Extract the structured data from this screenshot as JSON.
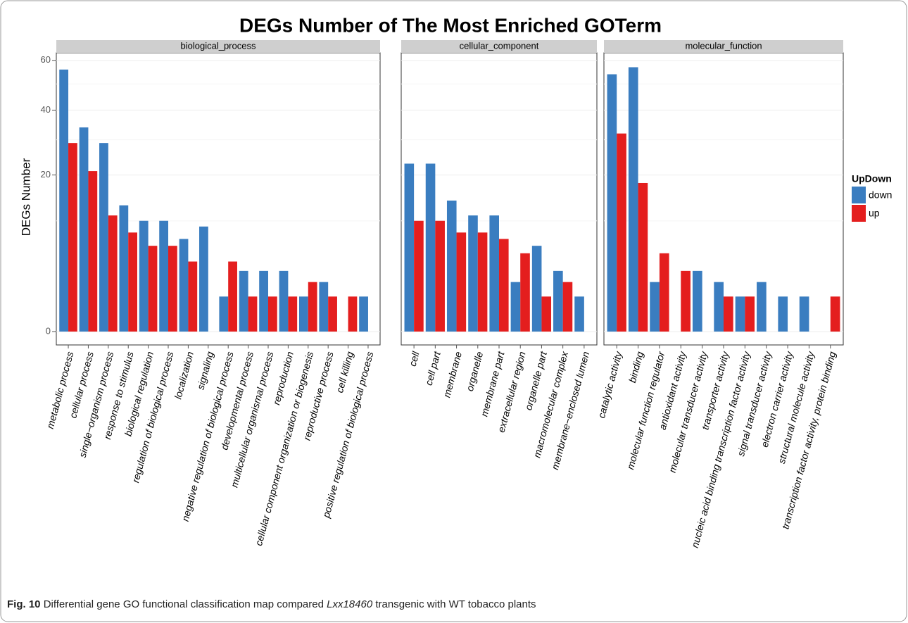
{
  "chart_data": {
    "type": "bar",
    "title": "DEGs Number of The Most Enriched GOTerm",
    "ylabel": "DEGs Number",
    "legend_title": "UpDown",
    "yscale": "sqrt",
    "ylim": [
      0,
      65
    ],
    "yticks": [
      0,
      20,
      40,
      60
    ],
    "grid": true,
    "series": [
      {
        "name": "down",
        "color": "#3a7dc0"
      },
      {
        "name": "up",
        "color": "#e41e1e"
      }
    ],
    "facets": [
      {
        "title": "biological_process",
        "categories": [
          "metabolic process",
          "cellular process",
          "single−organism process",
          "response to stimulus",
          "biological regulation",
          "regulation of biological process",
          "localization",
          "signaling",
          "negative regulation of biological process",
          "developmental process",
          "multicellular organismal process",
          "reproduction",
          "cellular component organization or biogenesis",
          "reproductive process",
          "cell killing",
          "positive regulation of biological process"
        ],
        "values": [
          [
            56,
            34,
            29,
            13,
            10,
            10,
            7,
            9,
            1,
            3,
            3,
            3,
            1,
            2,
            null,
            1
          ],
          [
            29,
            21,
            11,
            8,
            6,
            6,
            4,
            null,
            4,
            1,
            1,
            1,
            2,
            1,
            1,
            null
          ]
        ]
      },
      {
        "title": "cellular_component",
        "categories": [
          "cell",
          "cell part",
          "membrane",
          "organelle",
          "membrane part",
          "extracellular region",
          "organelle part",
          "macromolecular complex",
          "membrane−enclosed lumen"
        ],
        "values": [
          [
            23,
            23,
            14,
            11,
            11,
            2,
            6,
            3,
            1
          ],
          [
            10,
            10,
            8,
            8,
            7,
            5,
            1,
            2,
            null
          ]
        ]
      },
      {
        "title": "molecular_function",
        "categories": [
          "catalytic activity",
          "binding",
          "molecular function regulator",
          "antioxidant activity",
          "molecular transducer activity",
          "transporter activity",
          "nucleic acid binding transcription factor activity",
          "signal transducer activity",
          "electron carrier activity",
          "structural molecule activity",
          "transcription factor activity, protein binding"
        ],
        "values": [
          [
            54,
            57,
            2,
            null,
            3,
            2,
            1,
            2,
            1,
            1,
            null
          ],
          [
            32,
            18,
            5,
            3,
            null,
            1,
            1,
            null,
            null,
            null,
            1
          ]
        ]
      }
    ]
  },
  "caption": {
    "label": "Fig. 10",
    "text_before": "Differential gene GO functional classification map compared",
    "italic": "Lxx18460",
    "text_after": "transgenic with WT tobacco plants"
  }
}
